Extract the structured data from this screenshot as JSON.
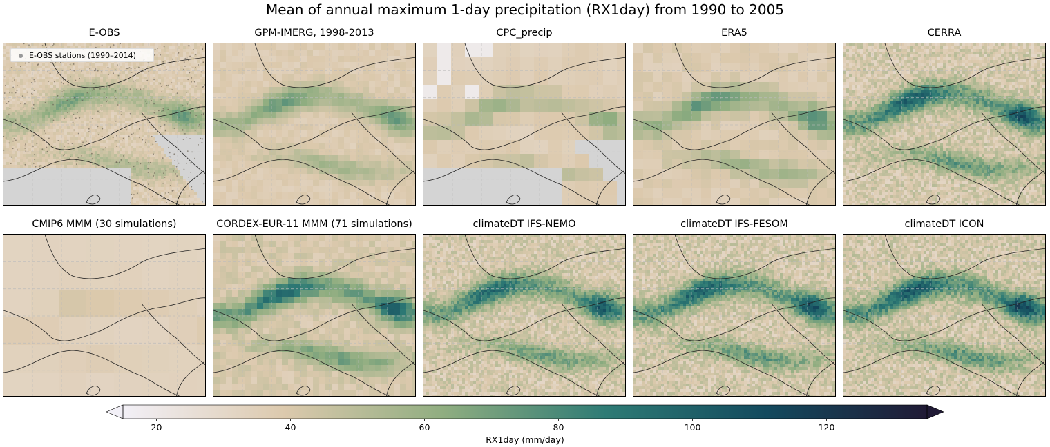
{
  "chart_data": {
    "type": "heatmap",
    "title": "Mean of annual maximum 1-day precipitation (RX1day) from 1990 to 2005",
    "panels": [
      {
        "title": "E-OBS",
        "legend": "E-OBS stations (1990–2014)",
        "resolution": "fine",
        "intensity": 0.45,
        "sea_masked": true,
        "stations": true
      },
      {
        "title": "GPM-IMERG, 1998-2013",
        "resolution": "medium",
        "intensity": 0.5
      },
      {
        "title": "CPC_precip",
        "resolution": "coarse",
        "intensity": 0.35,
        "sea_masked": true
      },
      {
        "title": "ERA5",
        "resolution": "medium-coarse",
        "intensity": 0.55
      },
      {
        "title": "CERRA",
        "resolution": "fine",
        "intensity": 0.85
      },
      {
        "title": "CMIP6 MMM (30 simulations)",
        "resolution": "very-coarse",
        "intensity": 0.12
      },
      {
        "title": "CORDEX-EUR-11 MMM (71 simulations)",
        "resolution": "medium",
        "intensity": 0.8
      },
      {
        "title": "climateDT IFS-NEMO",
        "resolution": "fine",
        "intensity": 0.8
      },
      {
        "title": "climateDT IFS-FESOM",
        "resolution": "fine",
        "intensity": 0.85
      },
      {
        "title": "climateDT ICON",
        "resolution": "fine",
        "intensity": 0.9
      }
    ],
    "colorbar": {
      "label": "RX1day (mm/day)",
      "ticks": [
        20,
        40,
        60,
        80,
        100,
        120
      ],
      "range": [
        15,
        135
      ],
      "colormap": [
        "#f2f0f7",
        "#dcc9ad",
        "#8fad80",
        "#2e7b75",
        "#134a5e",
        "#201a35"
      ]
    }
  }
}
